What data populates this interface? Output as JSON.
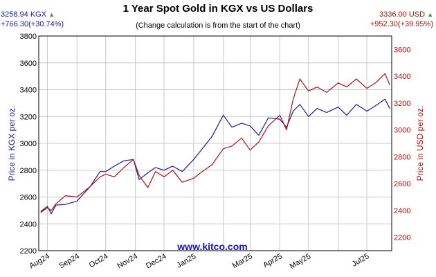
{
  "header": {
    "title": "1 Year Spot Gold in KGX vs US Dollars",
    "subtitle": "(Change calculation is from the start of the chart)",
    "kgx_price": "3258.94 KGX",
    "kgx_change": "+766.30(+30.74%)",
    "usd_price": "3336.00 USD",
    "usd_change": "+952.30(+39.95%)"
  },
  "watermark": "www.kitco.com",
  "colors": {
    "kgx": "#1a1a9e",
    "usd": "#b01010",
    "up_arrow": "#2aa12a",
    "grid": "#c8c8c8"
  },
  "chart_data": {
    "type": "line",
    "title": "1 Year Spot Gold in KGX vs US Dollars",
    "y_left": {
      "label": "Price in KGX per oz.",
      "min": 2200,
      "max": 3800,
      "ticks": [
        2200,
        2400,
        2600,
        2800,
        3000,
        3200,
        3400,
        3600,
        3800
      ]
    },
    "y_right": {
      "label": "Price in USD per oz.",
      "min": 2100,
      "max": 3700,
      "ticks": [
        2200,
        2400,
        2600,
        2800,
        3000,
        3200,
        3400,
        3600
      ]
    },
    "x_labels": [
      "Aug24",
      "Sep24",
      "Oct24",
      "Nov24",
      "Dec24",
      "Jan25",
      "Mar25",
      "Apr25",
      "May25",
      "Jul25"
    ],
    "grid": true,
    "series": [
      {
        "name": "KGX",
        "axis": "left",
        "x": [
          "2024-07-25",
          "2024-08-01",
          "2024-08-05",
          "2024-08-10",
          "2024-08-20",
          "2024-09-01",
          "2024-09-15",
          "2024-09-25",
          "2024-10-01",
          "2024-10-10",
          "2024-10-20",
          "2024-10-30",
          "2024-11-05",
          "2024-11-14",
          "2024-11-22",
          "2024-12-01",
          "2024-12-10",
          "2024-12-20",
          "2025-01-01",
          "2025-01-10",
          "2025-01-20",
          "2025-02-01",
          "2025-02-10",
          "2025-02-20",
          "2025-03-01",
          "2025-03-10",
          "2025-03-20",
          "2025-04-01",
          "2025-04-08",
          "2025-04-15",
          "2025-04-22",
          "2025-05-01",
          "2025-05-10",
          "2025-05-20",
          "2025-06-01",
          "2025-06-10",
          "2025-06-20",
          "2025-07-01",
          "2025-07-10",
          "2025-07-20",
          "2025-07-25"
        ],
        "values": [
          2492,
          2530,
          2475,
          2540,
          2545,
          2570,
          2680,
          2790,
          2790,
          2830,
          2870,
          2880,
          2730,
          2780,
          2820,
          2800,
          2830,
          2790,
          2880,
          2960,
          3050,
          3210,
          3120,
          3150,
          3130,
          3060,
          3190,
          3180,
          3120,
          3240,
          3290,
          3200,
          3260,
          3230,
          3270,
          3210,
          3290,
          3240,
          3280,
          3330,
          3259
        ]
      },
      {
        "name": "USD",
        "axis": "right",
        "x": [
          "2024-07-25",
          "2024-08-01",
          "2024-08-05",
          "2024-08-10",
          "2024-08-20",
          "2024-09-01",
          "2024-09-15",
          "2024-09-25",
          "2024-10-01",
          "2024-10-10",
          "2024-10-20",
          "2024-10-30",
          "2024-11-05",
          "2024-11-14",
          "2024-11-22",
          "2024-12-01",
          "2024-12-10",
          "2024-12-20",
          "2025-01-01",
          "2025-01-10",
          "2025-01-20",
          "2025-02-01",
          "2025-02-10",
          "2025-02-20",
          "2025-03-01",
          "2025-03-10",
          "2025-03-20",
          "2025-04-01",
          "2025-04-08",
          "2025-04-15",
          "2025-04-22",
          "2025-05-01",
          "2025-05-10",
          "2025-05-20",
          "2025-06-01",
          "2025-06-10",
          "2025-06-20",
          "2025-07-01",
          "2025-07-10",
          "2025-07-20",
          "2025-07-25"
        ],
        "values": [
          2384,
          2420,
          2400,
          2450,
          2510,
          2500,
          2580,
          2650,
          2670,
          2650,
          2720,
          2780,
          2660,
          2570,
          2690,
          2650,
          2700,
          2610,
          2640,
          2690,
          2740,
          2860,
          2880,
          2940,
          2850,
          2910,
          3030,
          3110,
          3000,
          3230,
          3380,
          3290,
          3320,
          3280,
          3350,
          3320,
          3380,
          3310,
          3350,
          3420,
          3336
        ]
      }
    ]
  }
}
